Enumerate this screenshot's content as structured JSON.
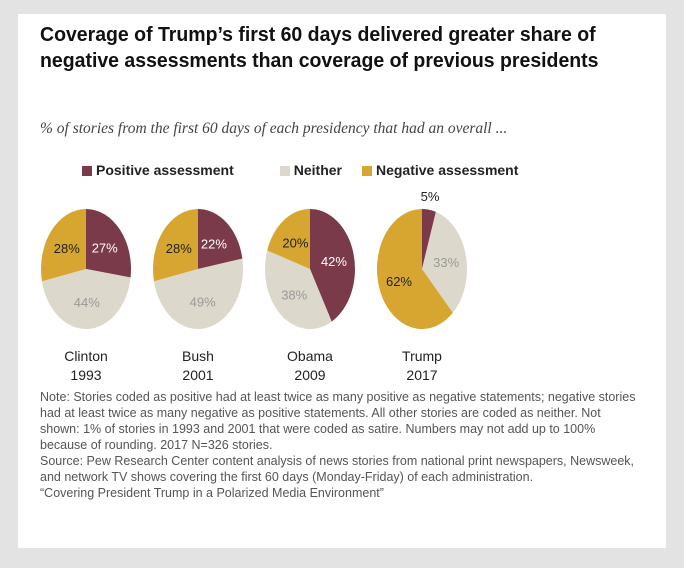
{
  "title": "Coverage of Trump’s first 60 days delivered greater share of negative assessments than coverage of previous presidents",
  "subtitle": "% of stories from the first 60 days of each presidency that had an overall ...",
  "chart_data": {
    "type": "pie",
    "legend": [
      {
        "name": "Positive assessment",
        "color": "#7b3a4a"
      },
      {
        "name": "Neither",
        "color": "#dcd8cb"
      },
      {
        "name": "Negative assessment",
        "color": "#d6a631"
      }
    ],
    "legend_position": "top",
    "pies": [
      {
        "label": "Clinton",
        "year": "1993",
        "values": [
          27,
          44,
          28
        ]
      },
      {
        "label": "Bush",
        "year": "2001",
        "values": [
          22,
          49,
          28
        ]
      },
      {
        "label": "Obama",
        "year": "2009",
        "values": [
          42,
          38,
          20
        ]
      },
      {
        "label": "Trump",
        "year": "2017",
        "values": [
          5,
          33,
          62
        ]
      }
    ]
  },
  "notes": [
    "Note: Stories coded as positive had at least twice as many positive as negative statements; negative stories had at least twice as many negative as positive statements. All other stories are coded as neither. Not shown: 1% of stories in 1993 and 2001 that were coded as satire.  Numbers may not add up to 100% because of rounding. 2017 N=326 stories.",
    "Source: Pew Research Center content analysis of news stories from national print newspapers, Newsweek, and network TV shows covering the first 60 days (Monday-Friday) of each administration.",
    "“Covering President Trump in a Polarized Media Environment”"
  ]
}
